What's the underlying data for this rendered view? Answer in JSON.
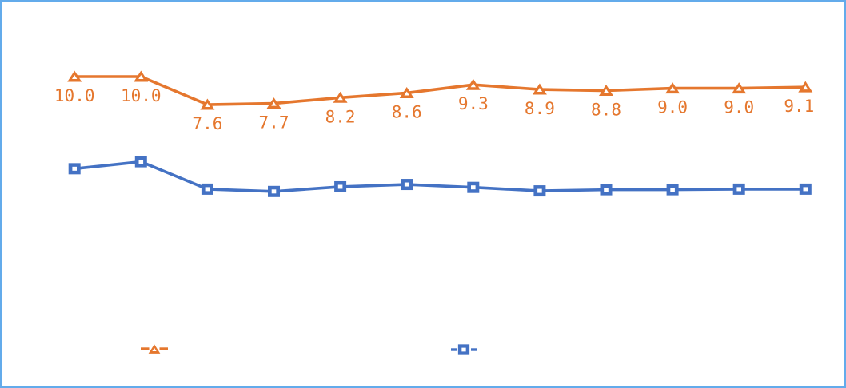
{
  "frame": {
    "border_color": "#63ABEB",
    "background_color": "#FFFFFF"
  },
  "chart_data": {
    "type": "line",
    "title": "",
    "xlabel": "",
    "ylabel": "",
    "x_axis_labels_visible": false,
    "y_axis_visible": false,
    "grid": false,
    "num_points": 12,
    "ylim": [
      0,
      11.5
    ],
    "series": [
      {
        "name": "",
        "marker": "triangle",
        "color": "#E5772E",
        "marker_inner_color": "#FFFFFF",
        "values": [
          10.0,
          10.0,
          7.6,
          7.7,
          8.2,
          8.6,
          9.3,
          8.9,
          8.8,
          9.0,
          9.0,
          9.1
        ],
        "data_labels": [
          "10.0",
          "10.0",
          "7.6",
          "7.7",
          "8.2",
          "8.6",
          "9.3",
          "8.9",
          "8.8",
          "9.0",
          "9.0",
          "9.1"
        ],
        "data_labels_visible": true,
        "values_estimated": false
      },
      {
        "name": "",
        "marker": "square",
        "color": "#4472C4",
        "marker_inner_color": "#FFFFFF",
        "values": [
          2.1,
          2.7,
          0.35,
          0.15,
          0.55,
          0.75,
          0.5,
          0.2,
          0.3,
          0.3,
          0.35,
          0.35
        ],
        "data_labels": [],
        "data_labels_visible": false,
        "values_estimated": true
      }
    ],
    "legend": {
      "position": "bottom",
      "labels_visible": false,
      "entries": [
        {
          "series": 0,
          "label": ""
        },
        {
          "series": 1,
          "label": ""
        }
      ]
    }
  }
}
